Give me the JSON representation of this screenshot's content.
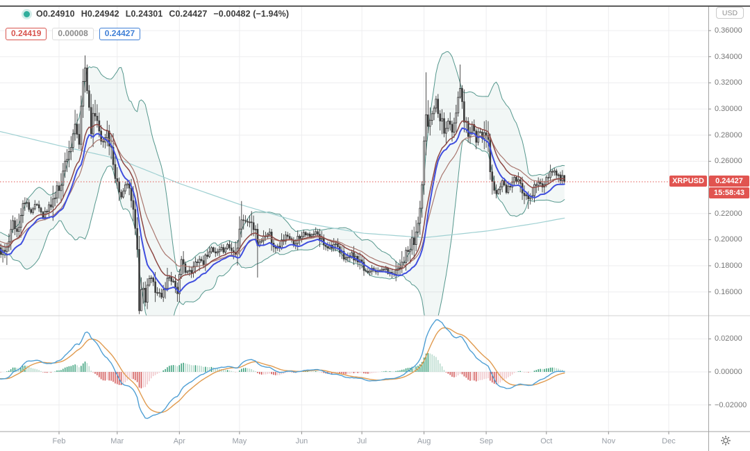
{
  "legend": {
    "o": "O0.24910",
    "h": "H0.24942",
    "l": "L0.24301",
    "c": "C0.24427",
    "change": "−0.00482 (−1.94%)",
    "marker_color": "#2fae9c"
  },
  "values_row": {
    "left": "0.24419",
    "middle": "0.00008",
    "right": "0.24427",
    "left_color": "#d8544e",
    "middle_color": "#8a8a8a",
    "right_color": "#3f7fd6"
  },
  "price_axis": {
    "currency": "USD",
    "ticks": [
      {
        "label": "0.36000",
        "value": 0.36
      },
      {
        "label": "0.34000",
        "value": 0.34
      },
      {
        "label": "0.32000",
        "value": 0.32
      },
      {
        "label": "0.30000",
        "value": 0.3
      },
      {
        "label": "0.28000",
        "value": 0.28
      },
      {
        "label": "0.26000",
        "value": 0.26
      },
      {
        "label": "0.22000",
        "value": 0.22
      },
      {
        "label": "0.20000",
        "value": 0.2
      },
      {
        "label": "0.18000",
        "value": 0.18
      },
      {
        "label": "0.16000",
        "value": 0.16
      }
    ],
    "last_price": "0.24427",
    "countdown": "15:58:43",
    "symbol_tag": "XRPUSD"
  },
  "macd_axis": {
    "ticks": [
      {
        "label": "0.02000",
        "value": 0.02
      },
      {
        "label": "0.00000",
        "value": 0.0
      },
      {
        "label": "−0.02000",
        "value": -0.02
      }
    ]
  },
  "time_axis": {
    "months": [
      {
        "label": "Feb",
        "day": 32
      },
      {
        "label": "Mar",
        "day": 61
      },
      {
        "label": "Apr",
        "day": 92
      },
      {
        "label": "May",
        "day": 122
      },
      {
        "label": "Jun",
        "day": 153
      },
      {
        "label": "Jul",
        "day": 183
      },
      {
        "label": "Aug",
        "day": 214
      },
      {
        "label": "Sep",
        "day": 245
      },
      {
        "label": "Oct",
        "day": 275
      },
      {
        "label": "Nov",
        "day": 306
      },
      {
        "label": "Dec",
        "day": 336
      }
    ]
  },
  "chart_data": {
    "type": "candlestick",
    "symbol": "XRPUSD",
    "current_price": 0.24427,
    "price_ylim": [
      0.14,
      0.365
    ],
    "macd_ylim": [
      -0.035,
      0.03
    ],
    "last_candle": {
      "open": 0.2491,
      "high": 0.24942,
      "low": 0.24301,
      "close": 0.24427,
      "change": -0.00482,
      "change_pct": -1.94
    },
    "indicators": {
      "bollinger": {
        "period": 20,
        "stdev": 2
      },
      "fast_ma_blue": {
        "type": "ema_of_low",
        "period": 12
      },
      "smoothed_ma_brown": {
        "periods": [
          8,
          13
        ]
      },
      "slow_ma_teal": {
        "type": "anchors"
      },
      "macd": {
        "fast": 12,
        "slow": 26,
        "signal": 9
      }
    },
    "close_anchors": [
      [
        2,
        0.192
      ],
      [
        5,
        0.187
      ],
      [
        8,
        0.213
      ],
      [
        11,
        0.206
      ],
      [
        15,
        0.231
      ],
      [
        18,
        0.221
      ],
      [
        21,
        0.227
      ],
      [
        24,
        0.219
      ],
      [
        27,
        0.224
      ],
      [
        31,
        0.237
      ],
      [
        34,
        0.251
      ],
      [
        36,
        0.266
      ],
      [
        38,
        0.272
      ],
      [
        40,
        0.284
      ],
      [
        42,
        0.274
      ],
      [
        44,
        0.32
      ],
      [
        45,
        0.332
      ],
      [
        46,
        0.315
      ],
      [
        47,
        0.301
      ],
      [
        48,
        0.287
      ],
      [
        50,
        0.297
      ],
      [
        52,
        0.287
      ],
      [
        54,
        0.272
      ],
      [
        56,
        0.283
      ],
      [
        58,
        0.27
      ],
      [
        60,
        0.242
      ],
      [
        63,
        0.232
      ],
      [
        66,
        0.247
      ],
      [
        68,
        0.228
      ],
      [
        70,
        0.206
      ],
      [
        71,
        0.197
      ],
      [
        72,
        0.15
      ],
      [
        73,
        0.16
      ],
      [
        75,
        0.154
      ],
      [
        77,
        0.171
      ],
      [
        79,
        0.167
      ],
      [
        81,
        0.161
      ],
      [
        83,
        0.156
      ],
      [
        85,
        0.165
      ],
      [
        87,
        0.172
      ],
      [
        89,
        0.168
      ],
      [
        91,
        0.161
      ],
      [
        93,
        0.181
      ],
      [
        95,
        0.177
      ],
      [
        98,
        0.174
      ],
      [
        101,
        0.186
      ],
      [
        104,
        0.183
      ],
      [
        107,
        0.193
      ],
      [
        110,
        0.189
      ],
      [
        113,
        0.191
      ],
      [
        116,
        0.196
      ],
      [
        119,
        0.19
      ],
      [
        121,
        0.199
      ],
      [
        123,
        0.218
      ],
      [
        125,
        0.213
      ],
      [
        127,
        0.215
      ],
      [
        129,
        0.209
      ],
      [
        131,
        0.197
      ],
      [
        133,
        0.2
      ],
      [
        135,
        0.203
      ],
      [
        137,
        0.205
      ],
      [
        139,
        0.197
      ],
      [
        141,
        0.194
      ],
      [
        143,
        0.198
      ],
      [
        145,
        0.203
      ],
      [
        147,
        0.2
      ],
      [
        149,
        0.197
      ],
      [
        151,
        0.201
      ],
      [
        154,
        0.206
      ],
      [
        157,
        0.202
      ],
      [
        160,
        0.205
      ],
      [
        163,
        0.199
      ],
      [
        166,
        0.195
      ],
      [
        169,
        0.196
      ],
      [
        172,
        0.19
      ],
      [
        175,
        0.186
      ],
      [
        178,
        0.188
      ],
      [
        181,
        0.183
      ],
      [
        184,
        0.177
      ],
      [
        186,
        0.175
      ],
      [
        188,
        0.179
      ],
      [
        191,
        0.175
      ],
      [
        194,
        0.178
      ],
      [
        197,
        0.174
      ],
      [
        200,
        0.177
      ],
      [
        203,
        0.184
      ],
      [
        206,
        0.19
      ],
      [
        209,
        0.198
      ],
      [
        211,
        0.212
      ],
      [
        213,
        0.242
      ],
      [
        214,
        0.27
      ],
      [
        215,
        0.298
      ],
      [
        216,
        0.287
      ],
      [
        218,
        0.298
      ],
      [
        220,
        0.307
      ],
      [
        222,
        0.295
      ],
      [
        224,
        0.285
      ],
      [
        226,
        0.291
      ],
      [
        228,
        0.281
      ],
      [
        230,
        0.295
      ],
      [
        231,
        0.31
      ],
      [
        232,
        0.315
      ],
      [
        233,
        0.302
      ],
      [
        234,
        0.292
      ],
      [
        236,
        0.284
      ],
      [
        238,
        0.288
      ],
      [
        240,
        0.277
      ],
      [
        242,
        0.281
      ],
      [
        244,
        0.277
      ],
      [
        245,
        0.281
      ],
      [
        246,
        0.274
      ],
      [
        247,
        0.251
      ],
      [
        248,
        0.241
      ],
      [
        249,
        0.232
      ],
      [
        251,
        0.239
      ],
      [
        253,
        0.244
      ],
      [
        255,
        0.238
      ],
      [
        257,
        0.242
      ],
      [
        259,
        0.247
      ],
      [
        261,
        0.243
      ],
      [
        263,
        0.239
      ],
      [
        265,
        0.236
      ],
      [
        267,
        0.23
      ],
      [
        269,
        0.241
      ],
      [
        271,
        0.245
      ],
      [
        273,
        0.239
      ],
      [
        275,
        0.244
      ],
      [
        277,
        0.25
      ],
      [
        279,
        0.253
      ],
      [
        281,
        0.247
      ],
      [
        283,
        0.2491
      ],
      [
        284,
        0.24427
      ]
    ],
    "extremes": {
      "45": {
        "h": 0.341
      },
      "72": {
        "l": 0.143
      },
      "73": {
        "l": 0.146
      },
      "123": {
        "h": 0.2295
      },
      "131": {
        "l": 0.171
      },
      "215": {
        "h": 0.328
      },
      "232": {
        "h": 0.334
      },
      "266": {
        "l": 0.2235
      },
      "284": {
        "h": 0.24942,
        "l": 0.24301
      }
    },
    "slow_ma_anchors": [
      [
        2,
        0.283
      ],
      [
        32,
        0.272
      ],
      [
        61,
        0.262
      ],
      [
        92,
        0.243
      ],
      [
        122,
        0.227
      ],
      [
        153,
        0.213
      ],
      [
        183,
        0.205
      ],
      [
        214,
        0.2015
      ],
      [
        245,
        0.2065
      ],
      [
        270,
        0.2125
      ],
      [
        284,
        0.2165
      ]
    ],
    "colors": {
      "candle": "#3a3a3a",
      "up_fill": "#ffffff",
      "bb": "#55978d",
      "bb_fill": "rgba(85,151,141,0.08)",
      "slow_ma": "#9fd0d2",
      "blue_ma": "#3f4ede",
      "brown_ma": "#8d4743",
      "brown_ma2": "#a8766e",
      "price_line": "#e15450",
      "tag_red": "#e15450",
      "macd_line": "#4f9fd4",
      "macd_signal": "#e09a4e",
      "hist_pos": "#369e78",
      "hist_pos_weak": "#b5d9cb",
      "hist_neg": "#d05050",
      "hist_neg_weak": "#f0c6ca",
      "grid": "#ededef",
      "axis_line": "#a3a3a3",
      "top_border": "#4c4c4c",
      "divider": "#d2d2d2",
      "text": "#757575"
    }
  }
}
